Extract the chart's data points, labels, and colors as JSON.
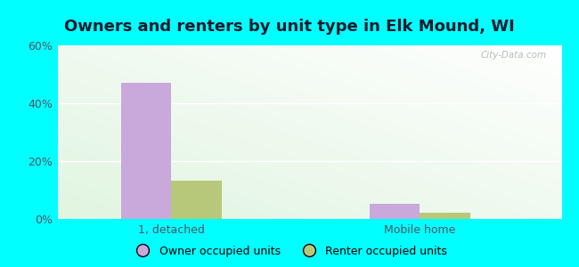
{
  "title": "Owners and renters by unit type in Elk Mound, WI",
  "categories": [
    "1, detached",
    "Mobile home"
  ],
  "series": [
    {
      "name": "Owner occupied units",
      "values": [
        47.1,
        5.3
      ],
      "color": "#c9a8dc"
    },
    {
      "name": "Renter occupied units",
      "values": [
        13.2,
        2.1
      ],
      "color": "#b8c87a"
    }
  ],
  "ylim": [
    0,
    60
  ],
  "yticks": [
    0,
    20,
    40,
    60
  ],
  "yticklabels": [
    "0%",
    "20%",
    "40%",
    "60%"
  ],
  "background_outer": "#00ffff",
  "bar_width": 0.32,
  "title_fontsize": 13,
  "watermark": "City-Data.com",
  "tick_color": "#555566",
  "grid_color": "#cccccc"
}
